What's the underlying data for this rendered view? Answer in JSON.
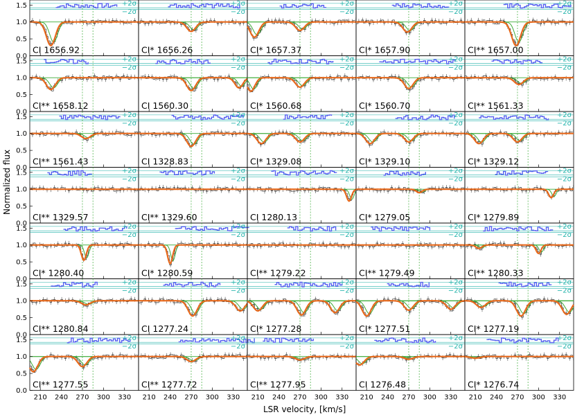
{
  "chart_data": {
    "type": "line",
    "ylabel": "Normalized flux",
    "xlabel": "LSR velocity, [km/s]",
    "xlim": [
      195,
      350
    ],
    "ylim": [
      0.0,
      1.65
    ],
    "xticks": [
      210,
      240,
      270,
      300,
      330
    ],
    "yticks": [
      0.0,
      0.5,
      1.0,
      1.5
    ],
    "ytick_labels": [
      "0.0",
      "0.5",
      "1.0",
      "1.5"
    ],
    "grid": false,
    "sigma_labels": [
      "+2σ",
      "−2σ"
    ],
    "component_velocities": [
      270,
      285
    ],
    "colors": {
      "data": "#333333",
      "model": "#e8691b",
      "components": "#3aaa35",
      "residuals": "#5560f0",
      "sigma_lines": "#20b2aa",
      "vlines": "#3aaa35"
    },
    "layout": {
      "rows": 7,
      "cols": 5
    },
    "panels": [
      {
        "label": "CI 1656.92",
        "lines": [
          {
            "v": 225,
            "d": 0.7,
            "w": 9
          }
        ]
      },
      {
        "label": "CI* 1656.26",
        "lines": [
          {
            "v": 270,
            "d": 0.28,
            "w": 9
          }
        ]
      },
      {
        "label": "CI* 1657.37",
        "lines": [
          {
            "v": 205,
            "d": 0.45,
            "w": 9
          },
          {
            "v": 270,
            "d": 0.25,
            "w": 9
          }
        ]
      },
      {
        "label": "CI* 1657.90",
        "lines": [
          {
            "v": 268,
            "d": 0.3,
            "w": 9
          }
        ]
      },
      {
        "label": "CI** 1657.00",
        "lines": [
          {
            "v": 268,
            "d": 0.7,
            "w": 9
          }
        ]
      },
      {
        "label": "CI** 1658.12",
        "lines": [
          {
            "v": 225,
            "d": 0.35,
            "w": 9
          }
        ]
      },
      {
        "label": "CI 1560.30",
        "lines": [
          {
            "v": 270,
            "d": 0.38,
            "w": 9
          },
          {
            "v": 338,
            "d": 0.3,
            "w": 8
          }
        ]
      },
      {
        "label": "CI* 1560.68",
        "lines": [
          {
            "v": 200,
            "d": 0.4,
            "w": 8
          },
          {
            "v": 270,
            "d": 0.28,
            "w": 9
          }
        ]
      },
      {
        "label": "CI* 1560.70",
        "lines": [
          {
            "v": 270,
            "d": 0.32,
            "w": 9
          }
        ]
      },
      {
        "label": "CI** 1561.33",
        "lines": [
          {
            "v": 272,
            "d": 0.2,
            "w": 9
          }
        ]
      },
      {
        "label": "CI** 1561.43",
        "lines": [
          {
            "v": 275,
            "d": 0.15,
            "w": 9
          }
        ]
      },
      {
        "label": "CI 1328.83",
        "lines": [
          {
            "v": 270,
            "d": 0.38,
            "w": 9
          }
        ]
      },
      {
        "label": "CI* 1329.08",
        "lines": [
          {
            "v": 215,
            "d": 0.3,
            "w": 9
          },
          {
            "v": 270,
            "d": 0.25,
            "w": 9
          }
        ]
      },
      {
        "label": "CI* 1329.10",
        "lines": [
          {
            "v": 215,
            "d": 0.3,
            "w": 9
          },
          {
            "v": 270,
            "d": 0.25,
            "w": 9
          }
        ]
      },
      {
        "label": "CI* 1329.12",
        "lines": [
          {
            "v": 215,
            "d": 0.3,
            "w": 9
          },
          {
            "v": 270,
            "d": 0.25,
            "w": 9
          }
        ]
      },
      {
        "label": "CI** 1329.57",
        "lines": []
      },
      {
        "label": "CI** 1329.60",
        "lines": []
      },
      {
        "label": "CI 1280.13",
        "lines": [
          {
            "v": 340,
            "d": 0.35,
            "w": 5
          }
        ]
      },
      {
        "label": "CI* 1279.05",
        "lines": [
          {
            "v": 285,
            "d": 0.1,
            "w": 6
          }
        ]
      },
      {
        "label": "CI* 1279.89",
        "lines": [
          {
            "v": 318,
            "d": 0.25,
            "w": 5
          }
        ]
      },
      {
        "label": "CI* 1280.40",
        "lines": [
          {
            "v": 272,
            "d": 0.45,
            "w": 5
          }
        ]
      },
      {
        "label": "CI* 1280.59",
        "lines": [
          {
            "v": 240,
            "d": 0.55,
            "w": 5
          }
        ]
      },
      {
        "label": "CI** 1279.22",
        "lines": []
      },
      {
        "label": "CI** 1279.49",
        "lines": []
      },
      {
        "label": "CI** 1280.33",
        "lines": [
          {
            "v": 215,
            "d": 0.1,
            "w": 6
          },
          {
            "v": 300,
            "d": 0.25,
            "w": 5
          }
        ]
      },
      {
        "label": "CI** 1280.84",
        "lines": [
          {
            "v": 275,
            "d": 0.12,
            "w": 9
          }
        ]
      },
      {
        "label": "CI 1277.24",
        "lines": [
          {
            "v": 272,
            "d": 0.45,
            "w": 9
          },
          {
            "v": 340,
            "d": 0.3,
            "w": 9
          }
        ]
      },
      {
        "label": "CI* 1277.28",
        "lines": [
          {
            "v": 210,
            "d": 0.3,
            "w": 9
          },
          {
            "v": 272,
            "d": 0.42,
            "w": 9
          },
          {
            "v": 320,
            "d": 0.35,
            "w": 9
          }
        ]
      },
      {
        "label": "CI* 1277.51",
        "lines": [
          {
            "v": 210,
            "d": 0.45,
            "w": 9
          },
          {
            "v": 270,
            "d": 0.28,
            "w": 9
          },
          {
            "v": 330,
            "d": 0.25,
            "w": 9
          }
        ]
      },
      {
        "label": "CI* 1277.19",
        "lines": [
          {
            "v": 218,
            "d": 0.2,
            "w": 9
          },
          {
            "v": 275,
            "d": 0.45,
            "w": 9
          },
          {
            "v": 340,
            "d": 0.4,
            "w": 9
          }
        ]
      },
      {
        "label": "CI** 1277.55",
        "lines": [
          {
            "v": 200,
            "d": 0.45,
            "w": 9
          },
          {
            "v": 270,
            "d": 0.3,
            "w": 9
          }
        ]
      },
      {
        "label": "CI** 1277.72",
        "lines": [
          {
            "v": 270,
            "d": 0.15,
            "w": 9
          }
        ]
      },
      {
        "label": "CI** 1277.95",
        "lines": [
          {
            "v": 270,
            "d": 0.1,
            "w": 9
          }
        ]
      },
      {
        "label": "CI 1276.48",
        "lines": [
          {
            "v": 200,
            "d": 0.25,
            "w": 9
          },
          {
            "v": 270,
            "d": 0.08,
            "w": 9
          }
        ]
      },
      {
        "label": "CI* 1276.74",
        "lines": [
          {
            "v": 210,
            "d": 0.05,
            "w": 9
          }
        ]
      }
    ]
  }
}
